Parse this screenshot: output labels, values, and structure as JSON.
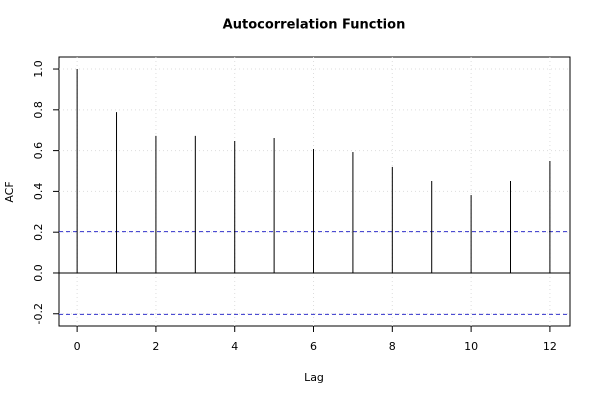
{
  "chart_data": {
    "type": "acf",
    "title": "Autocorrelation Function",
    "x_label": "Lag",
    "y_label": "ACF",
    "x": [
      0,
      1,
      2,
      3,
      4,
      5,
      6,
      7,
      8,
      9,
      10,
      11,
      12
    ],
    "values": [
      1,
      0.789,
      0.672,
      0.672,
      0.647,
      0.662,
      0.608,
      0.593,
      0.52,
      0.451,
      0.382,
      0.451,
      0.549
    ],
    "color": "#000000",
    "ci_lines": [
      0.203,
      -0.203
    ],
    "ci_color": "#3333cc",
    "xlim": [
      -0.46,
      12.51
    ],
    "ylim": [
      -0.26,
      1.059
    ],
    "xticks": [
      0,
      2,
      4,
      6,
      8,
      10,
      12
    ],
    "yticks": [
      -0.2,
      {
        "value": 0,
        "label": "0.0"
      },
      0.2,
      0.4,
      0.6,
      0.8,
      {
        "value": 1,
        "label": "1.0"
      }
    ],
    "grid": true
  }
}
